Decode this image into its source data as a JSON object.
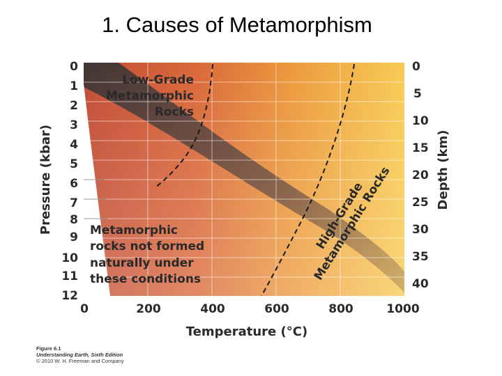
{
  "slide": {
    "title": "1. Causes of Metamorphism"
  },
  "diagram": {
    "y_axis_left": {
      "label": "Pressure (kbar)",
      "ticks": [
        "0",
        "1",
        "2",
        "3",
        "4",
        "5",
        "6",
        "7",
        "8",
        "9",
        "10",
        "11",
        "12"
      ]
    },
    "y_axis_right": {
      "label": "Depth (km)",
      "ticks": [
        "0",
        "5",
        "10",
        "15",
        "20",
        "25",
        "30",
        "35",
        "40"
      ]
    },
    "x_axis": {
      "label": "Temperature (°C)",
      "ticks": [
        "0",
        "200",
        "400",
        "600",
        "800",
        "1000"
      ]
    },
    "regions": {
      "low_grade": [
        "Low-Grade",
        "Metamorphic",
        "Rocks"
      ],
      "high_grade": [
        "High-Grade",
        "Metamorphic Rocks"
      ],
      "not_formed": [
        "Metamorphic",
        "rocks not formed",
        "naturally under",
        "these conditions"
      ]
    },
    "colors": {
      "hot": "#f6c24a",
      "warm": "#e9893a",
      "cool": "#c55336",
      "band": "#5a4a48"
    }
  },
  "caption": {
    "figure": "Figure 6.1",
    "book": "Understanding Earth, Sixth Edition",
    "copyright": "© 2010 W. H. Freeman and Company"
  }
}
